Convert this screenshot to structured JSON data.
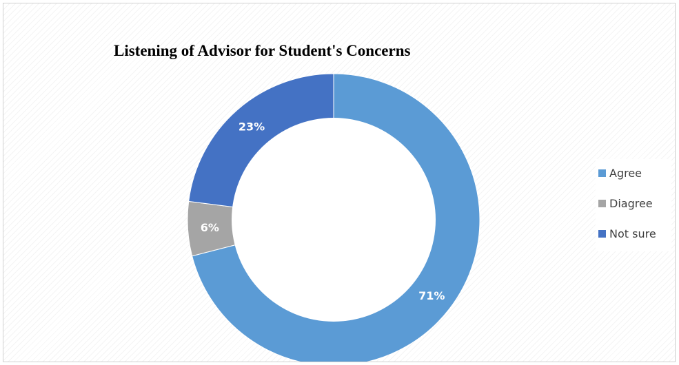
{
  "chart_data": {
    "type": "pie",
    "title": "Listening of Advisor for Student's Concerns",
    "categories": [
      "Agree",
      "Diagree",
      "Not sure"
    ],
    "values": [
      71,
      6,
      23
    ],
    "labels": [
      "71%",
      "6%",
      "23%"
    ],
    "colors": [
      "#5B9BD5",
      "#A5A5A5",
      "#4472C4"
    ],
    "donut": true,
    "legend_position": "right"
  }
}
